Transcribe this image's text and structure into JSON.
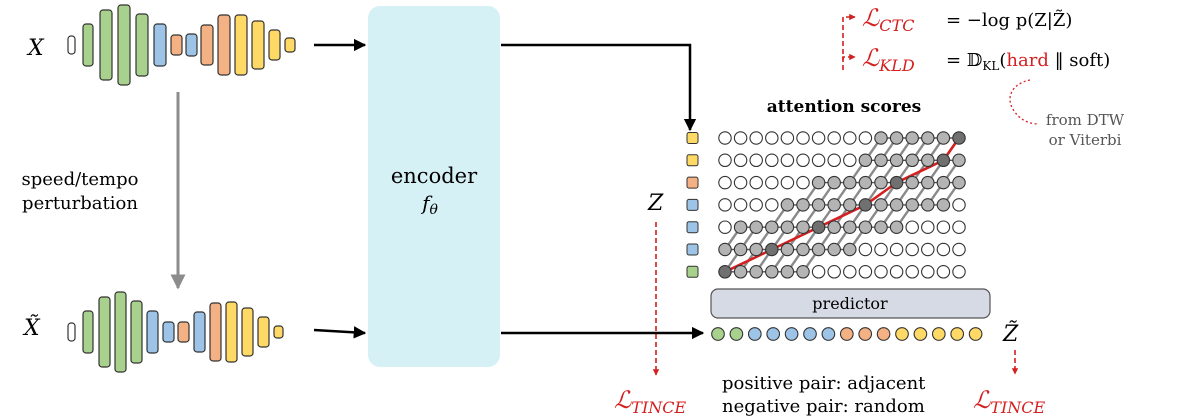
{
  "colors": {
    "green": "#a9d18e",
    "blue": "#9dc3e6",
    "orange": "#f4b183",
    "yellow": "#ffd966",
    "encoder_fill": "#d6f1f5",
    "predictor_fill": "#d5dae4",
    "red": "#d42020",
    "node_dark": "#707070",
    "node_mid": "#b4b4b4",
    "arrow_gray": "#8c8c8c"
  },
  "input": {
    "x_label": "X",
    "x_tilde_label": "X̃"
  },
  "perturbation": {
    "line1": "speed/tempo",
    "line2": "perturbation"
  },
  "encoder": {
    "title": "encoder",
    "symbol": "f",
    "subscript": "θ"
  },
  "z_label": "Z",
  "z_tilde_label": "Z̃",
  "attention": {
    "title": "attention scores"
  },
  "predictor": {
    "label": "predictor"
  },
  "losses": {
    "ctc": {
      "script": "ℒ",
      "subscript": "CTC",
      "rhs": "= −log p(Z|Z̃)"
    },
    "kld": {
      "script": "ℒ",
      "subscript": "KLD",
      "rhs_prefix": "= 𝔻",
      "rhs_sub": "KL",
      "rhs_paren_open": "(",
      "rhs_hard": "hard",
      "rhs_rest": " ‖ soft)"
    },
    "tince_left": {
      "script": "ℒ",
      "subscript": "TINCE"
    },
    "tince_right": {
      "script": "ℒ",
      "subscript": "TINCE"
    }
  },
  "dtw_note": {
    "line1": "from DTW",
    "line2": "or Viterbi"
  },
  "pairs": {
    "positive": "positive pair: adjacent",
    "negative": "negative pair: random"
  }
}
